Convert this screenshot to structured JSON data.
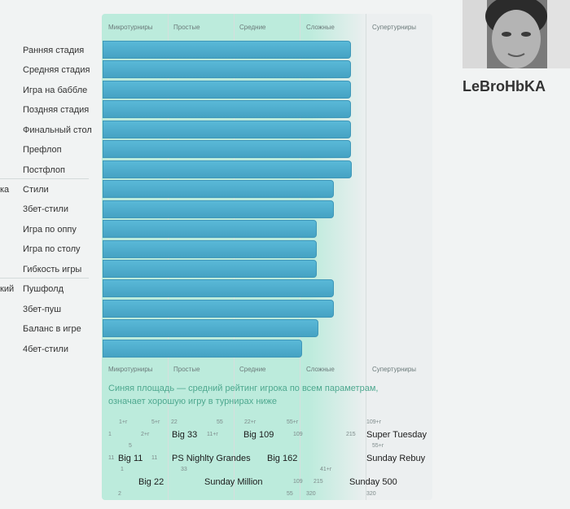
{
  "profile": {
    "username": "LeBroHbKA"
  },
  "tiers": [
    "Микротурниры",
    "Простые",
    "Средние",
    "Сложные",
    "Супертурниры"
  ],
  "groups": [
    "ка",
    "кий"
  ],
  "note": "Синяя площадь — средний рейтинг игрока по всем параметрам, означает хорошую игру в турнирах ниже",
  "chart_data": {
    "type": "bar",
    "orientation": "horizontal",
    "categories": [
      "Ранняя стадия",
      "Средняя стадия",
      "Игра на баббле",
      "Поздняя стадия",
      "Финальный стол",
      "Префлоп",
      "Постфлоп",
      "Стили",
      "3бет-стили",
      "Игра по оппу",
      "Игра по столу",
      "Гибкость игры",
      "Пушфолд",
      "3бет-пуш",
      "Баланс в игре",
      "4бет-стили"
    ],
    "values": [
      3.76,
      3.76,
      3.76,
      3.76,
      3.76,
      3.76,
      3.78,
      3.51,
      3.51,
      3.25,
      3.25,
      3.25,
      3.51,
      3.51,
      3.27,
      3.02
    ],
    "xlim": [
      0,
      5
    ],
    "xticklabels": [
      "Микротурниры",
      "Простые",
      "Средние",
      "Сложные",
      "Супертурниры"
    ]
  },
  "tournaments": [
    {
      "name": "Super Tuesday"
    },
    {
      "name": "Big 33"
    },
    {
      "name": "Big 109"
    },
    {
      "name": "Big 11"
    },
    {
      "name": "PS Nighlty Grandes"
    },
    {
      "name": "Big 162"
    },
    {
      "name": "Sunday Rebuy"
    },
    {
      "name": "Big 22"
    },
    {
      "name": "Sunday Million"
    },
    {
      "name": "Sunday 500"
    }
  ],
  "small_labels": [
    "1+r",
    "5+r",
    "22",
    "55",
    "22+r",
    "55+r",
    "109+r",
    "1",
    "2+r",
    "11+r",
    "109",
    "215",
    "5",
    "55+r",
    "11",
    "11",
    "33",
    "41+r",
    "1",
    "109",
    "215",
    "2",
    "55",
    "320",
    "320"
  ]
}
